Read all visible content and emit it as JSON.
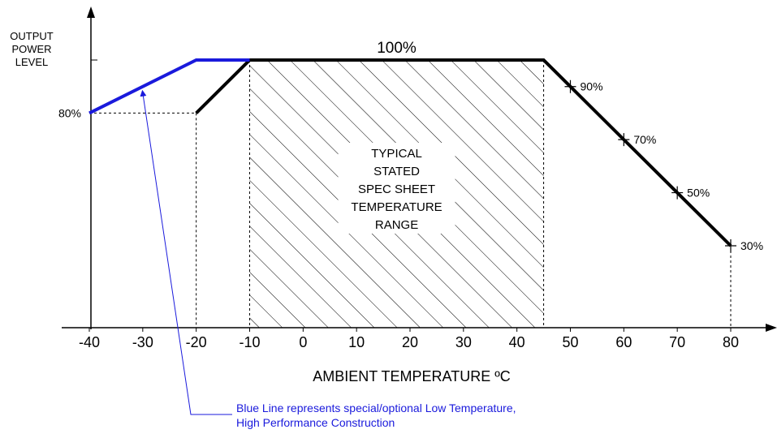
{
  "chart_data": {
    "type": "line",
    "title": "",
    "ylabel": "OUTPUT\nPOWER\nLEVEL",
    "xlabel": "AMBIENT TEMPERATURE ºC",
    "xlim": [
      -40,
      80
    ],
    "ylim": [
      25,
      100
    ],
    "x_ticks": [
      -40,
      -30,
      -20,
      -10,
      0,
      10,
      20,
      30,
      40,
      50,
      60,
      70,
      80
    ],
    "x_tick_labels": [
      "-40",
      "-30",
      "-20",
      "-10",
      "0",
      "10",
      "20",
      "30",
      "40",
      "50",
      "60",
      "70",
      "80"
    ],
    "grid": false,
    "series": [
      {
        "color": "#000000",
        "points": [
          [
            -20,
            80
          ],
          [
            -10,
            100
          ],
          [
            45,
            100
          ],
          [
            50,
            90
          ],
          [
            60,
            70
          ],
          [
            70,
            50
          ],
          [
            80,
            30
          ]
        ]
      },
      {
        "color": "#1a1adc",
        "points": [
          [
            -40,
            80
          ],
          [
            -20,
            100
          ],
          [
            -10,
            100
          ]
        ]
      }
    ],
    "point_labels": [
      {
        "x": -40,
        "y": 80,
        "text": "80%",
        "side": "left"
      },
      {
        "x": 17.5,
        "y": 100,
        "text": "100%",
        "side": "top"
      },
      {
        "x": 50,
        "y": 90,
        "text": "90%",
        "side": "right"
      },
      {
        "x": 60,
        "y": 70,
        "text": "70%",
        "side": "right"
      },
      {
        "x": 70,
        "y": 50,
        "text": "50%",
        "side": "right"
      },
      {
        "x": 80,
        "y": 30,
        "text": "30%",
        "side": "right"
      }
    ],
    "shaded_region": {
      "x_range": [
        -10,
        45
      ],
      "label": [
        "TYPICAL",
        "STATED",
        "SPEC SHEET",
        "TEMPERATURE",
        "RANGE"
      ]
    },
    "annotation": {
      "text": "Blue Line represents special/optional Low Temperature,\nHigh Performance Construction",
      "color": "#1a1adc",
      "points_to": {
        "x": -30,
        "y": 90
      }
    }
  }
}
